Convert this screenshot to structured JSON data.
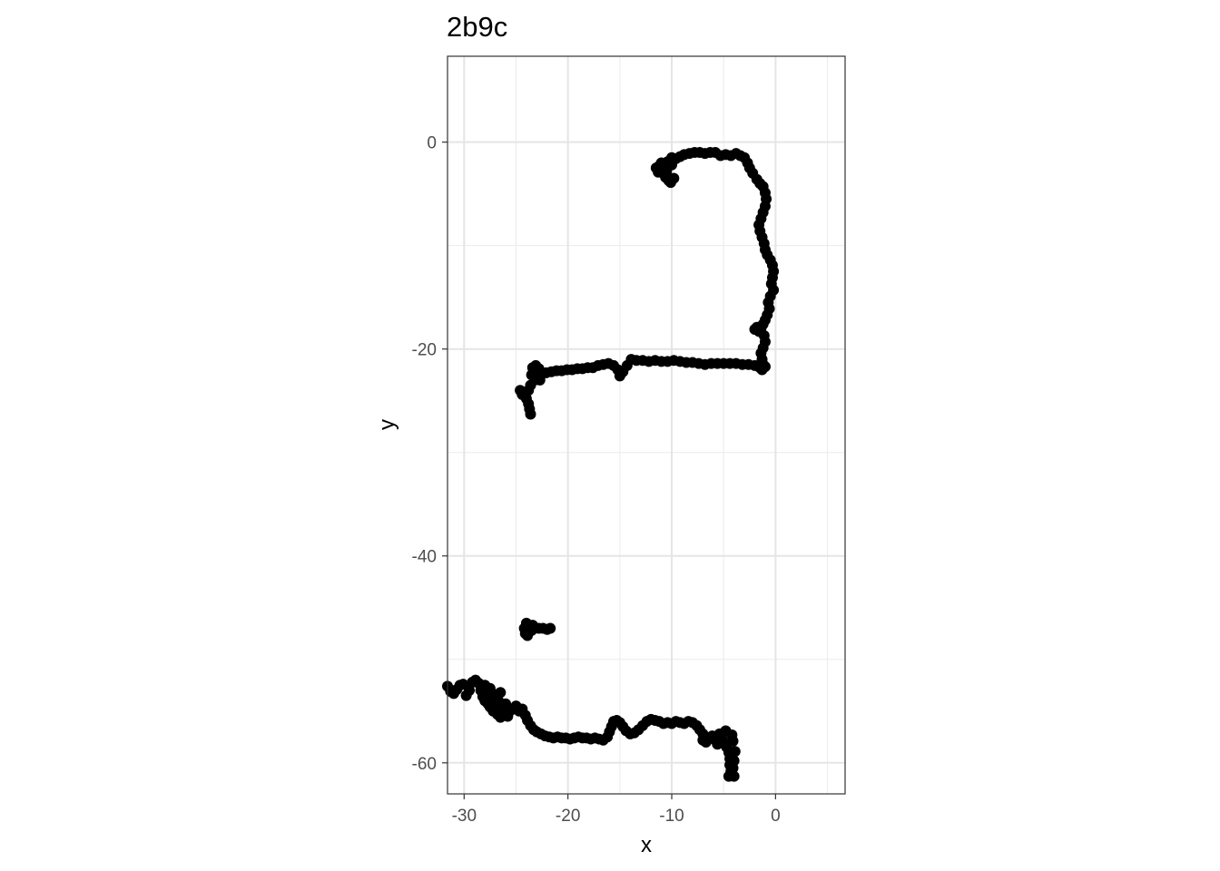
{
  "chart_data": {
    "type": "scatter",
    "title": "2b9c",
    "xlabel": "x",
    "ylabel": "y",
    "xlim": [
      -31.6,
      6.7
    ],
    "ylim": [
      -63.0,
      8.3
    ],
    "x_ticks": [
      -30,
      -20,
      -10,
      0
    ],
    "y_ticks": [
      0,
      -20,
      -40,
      -60
    ],
    "x_minor_ticks": [
      -25,
      -15,
      -5,
      5
    ],
    "y_minor_ticks": [
      -10,
      -30,
      -50
    ],
    "grid": true,
    "point_color": "#000000",
    "series": [
      {
        "values": [
          [
            -11.5,
            -2.5
          ],
          [
            -11.3,
            -2.9
          ],
          [
            -11.2,
            -2.3
          ],
          [
            -11.0,
            -2.0
          ],
          [
            -10.8,
            -2.6
          ],
          [
            -10.7,
            -3.1
          ],
          [
            -10.6,
            -3.4
          ],
          [
            -10.5,
            -2.8
          ],
          [
            -10.4,
            -1.9
          ],
          [
            -10.3,
            -3.7
          ],
          [
            -10.1,
            -3.9
          ],
          [
            -10.0,
            -2.2
          ],
          [
            -10.0,
            -1.5
          ],
          [
            -9.8,
            -3.5
          ],
          [
            -9.6,
            -1.6
          ],
          [
            -9.2,
            -1.4
          ],
          [
            -8.8,
            -1.2
          ],
          [
            -8.3,
            -1.1
          ],
          [
            -7.8,
            -1.0
          ],
          [
            -7.3,
            -1.0
          ],
          [
            -6.8,
            -1.1
          ],
          [
            -6.3,
            -1.0
          ],
          [
            -5.8,
            -1.0
          ],
          [
            -5.3,
            -1.3
          ],
          [
            -4.8,
            -1.2
          ],
          [
            -4.3,
            -1.3
          ],
          [
            -3.8,
            -1.1
          ],
          [
            -3.4,
            -1.3
          ],
          [
            -3.0,
            -1.5
          ],
          [
            -2.7,
            -2.0
          ],
          [
            -2.5,
            -2.5
          ],
          [
            -2.2,
            -3.0
          ],
          [
            -1.8,
            -3.6
          ],
          [
            -1.5,
            -4.0
          ],
          [
            -1.2,
            -4.3
          ],
          [
            -1.0,
            -4.9
          ],
          [
            -0.9,
            -5.5
          ],
          [
            -1.0,
            -6.2
          ],
          [
            -1.2,
            -6.8
          ],
          [
            -1.4,
            -7.4
          ],
          [
            -1.6,
            -8.0
          ],
          [
            -1.5,
            -8.6
          ],
          [
            -1.3,
            -9.2
          ],
          [
            -1.1,
            -9.8
          ],
          [
            -1.0,
            -10.4
          ],
          [
            -0.8,
            -10.9
          ],
          [
            -0.5,
            -11.4
          ],
          [
            -0.3,
            -11.9
          ],
          [
            -0.2,
            -12.5
          ],
          [
            -0.3,
            -13.1
          ],
          [
            -0.4,
            -13.7
          ],
          [
            -0.2,
            -14.3
          ],
          [
            -0.5,
            -14.9
          ],
          [
            -0.7,
            -15.5
          ],
          [
            -0.6,
            -16.1
          ],
          [
            -0.8,
            -16.7
          ],
          [
            -1.0,
            -17.2
          ],
          [
            -1.2,
            -17.6
          ],
          [
            -1.8,
            -17.9
          ],
          [
            -2.0,
            -18.1
          ],
          [
            -1.6,
            -18.3
          ],
          [
            -1.4,
            -18.0
          ],
          [
            -1.1,
            -18.7
          ],
          [
            -1.0,
            -19.3
          ],
          [
            -1.2,
            -19.9
          ],
          [
            -1.4,
            -20.4
          ],
          [
            -1.3,
            -21.0
          ],
          [
            -1.2,
            -21.5
          ],
          [
            -1.5,
            -21.8
          ],
          [
            -1.3,
            -22.0
          ],
          [
            -1.0,
            -21.7
          ],
          [
            -2.0,
            -21.6
          ],
          [
            -2.6,
            -21.5
          ],
          [
            -3.2,
            -21.5
          ],
          [
            -3.8,
            -21.4
          ],
          [
            -4.4,
            -21.4
          ],
          [
            -5.0,
            -21.4
          ],
          [
            -5.6,
            -21.4
          ],
          [
            -6.2,
            -21.4
          ],
          [
            -6.8,
            -21.5
          ],
          [
            -7.4,
            -21.4
          ],
          [
            -8.0,
            -21.3
          ],
          [
            -8.6,
            -21.3
          ],
          [
            -9.2,
            -21.2
          ],
          [
            -9.8,
            -21.1
          ],
          [
            -10.4,
            -21.2
          ],
          [
            -11.0,
            -21.2
          ],
          [
            -11.6,
            -21.1
          ],
          [
            -12.2,
            -21.2
          ],
          [
            -12.8,
            -21.1
          ],
          [
            -13.4,
            -21.1
          ],
          [
            -13.9,
            -21.0
          ],
          [
            -14.3,
            -21.6
          ],
          [
            -14.7,
            -22.2
          ],
          [
            -15.0,
            -22.6
          ],
          [
            -15.2,
            -22.0
          ],
          [
            -15.6,
            -21.6
          ],
          [
            -16.1,
            -21.4
          ],
          [
            -16.6,
            -21.5
          ],
          [
            -17.1,
            -21.6
          ],
          [
            -17.6,
            -21.8
          ],
          [
            -18.1,
            -21.8
          ],
          [
            -18.6,
            -21.9
          ],
          [
            -19.1,
            -21.9
          ],
          [
            -19.6,
            -22.0
          ],
          [
            -20.1,
            -22.0
          ],
          [
            -20.6,
            -22.1
          ],
          [
            -21.1,
            -22.1
          ],
          [
            -21.6,
            -22.2
          ],
          [
            -22.1,
            -22.3
          ],
          [
            -22.5,
            -22.4
          ],
          [
            -22.8,
            -21.9
          ],
          [
            -23.1,
            -21.6
          ],
          [
            -23.4,
            -21.8
          ],
          [
            -23.5,
            -22.5
          ],
          [
            -23.2,
            -23.0
          ],
          [
            -22.7,
            -23.0
          ],
          [
            -23.6,
            -23.5
          ],
          [
            -23.8,
            -24.0
          ],
          [
            -24.1,
            -24.2
          ],
          [
            -24.4,
            -24.4
          ],
          [
            -24.6,
            -24.0
          ],
          [
            -24.0,
            -24.8
          ],
          [
            -23.8,
            -25.3
          ],
          [
            -23.7,
            -25.8
          ],
          [
            -23.6,
            -26.3
          ],
          [
            -24.0,
            -46.5
          ],
          [
            -23.8,
            -46.8
          ],
          [
            -24.2,
            -47.0
          ],
          [
            -23.5,
            -47.2
          ],
          [
            -24.1,
            -47.5
          ],
          [
            -23.9,
            -47.7
          ],
          [
            -23.4,
            -46.7
          ],
          [
            -23.2,
            -47.0
          ],
          [
            -22.8,
            -47.0
          ],
          [
            -22.4,
            -47.0
          ],
          [
            -22.0,
            -47.1
          ],
          [
            -21.7,
            -47.0
          ],
          [
            -31.6,
            -52.6
          ],
          [
            -31.3,
            -53.1
          ],
          [
            -31.0,
            -53.3
          ],
          [
            -30.7,
            -52.9
          ],
          [
            -30.4,
            -52.5
          ],
          [
            -30.1,
            -52.4
          ],
          [
            -29.8,
            -53.5
          ],
          [
            -29.5,
            -53.0
          ],
          [
            -29.2,
            -52.2
          ],
          [
            -28.9,
            -52.0
          ],
          [
            -28.6,
            -52.3
          ],
          [
            -28.4,
            -53.0
          ],
          [
            -28.2,
            -53.6
          ],
          [
            -28.0,
            -54.0
          ],
          [
            -28.0,
            -52.5
          ],
          [
            -27.8,
            -53.3
          ],
          [
            -27.7,
            -54.3
          ],
          [
            -27.5,
            -54.6
          ],
          [
            -27.5,
            -52.8
          ],
          [
            -27.3,
            -53.8
          ],
          [
            -27.2,
            -55.0
          ],
          [
            -27.0,
            -54.2
          ],
          [
            -26.9,
            -53.4
          ],
          [
            -26.8,
            -55.3
          ],
          [
            -26.7,
            -54.0
          ],
          [
            -26.5,
            -55.6
          ],
          [
            -26.5,
            -53.2
          ],
          [
            -26.3,
            -54.8
          ],
          [
            -26.1,
            -55.1
          ],
          [
            -26.0,
            -54.3
          ],
          [
            -25.8,
            -55.5
          ],
          [
            -25.6,
            -55.0
          ],
          [
            -25.3,
            -54.8
          ],
          [
            -25.0,
            -54.5
          ],
          [
            -24.7,
            -55.0
          ],
          [
            -24.4,
            -54.8
          ],
          [
            -24.1,
            -55.4
          ],
          [
            -23.9,
            -55.9
          ],
          [
            -23.6,
            -56.4
          ],
          [
            -23.3,
            -56.8
          ],
          [
            -23.0,
            -57.0
          ],
          [
            -22.6,
            -57.2
          ],
          [
            -22.2,
            -57.4
          ],
          [
            -21.8,
            -57.5
          ],
          [
            -21.4,
            -57.6
          ],
          [
            -21.0,
            -57.5
          ],
          [
            -20.6,
            -57.6
          ],
          [
            -20.2,
            -57.6
          ],
          [
            -19.8,
            -57.7
          ],
          [
            -19.4,
            -57.6
          ],
          [
            -19.0,
            -57.5
          ],
          [
            -18.6,
            -57.6
          ],
          [
            -18.2,
            -57.6
          ],
          [
            -17.8,
            -57.7
          ],
          [
            -17.4,
            -57.6
          ],
          [
            -17.0,
            -57.7
          ],
          [
            -16.6,
            -57.8
          ],
          [
            -16.2,
            -57.5
          ],
          [
            -16.0,
            -57.0
          ],
          [
            -15.8,
            -56.5
          ],
          [
            -15.6,
            -56.0
          ],
          [
            -15.3,
            -55.9
          ],
          [
            -15.0,
            -56.1
          ],
          [
            -14.7,
            -56.5
          ],
          [
            -14.4,
            -56.9
          ],
          [
            -14.0,
            -57.2
          ],
          [
            -13.6,
            -57.1
          ],
          [
            -13.2,
            -56.8
          ],
          [
            -12.8,
            -56.4
          ],
          [
            -12.4,
            -56.0
          ],
          [
            -12.0,
            -55.8
          ],
          [
            -11.6,
            -55.9
          ],
          [
            -11.2,
            -56.0
          ],
          [
            -10.8,
            -56.2
          ],
          [
            -10.4,
            -56.1
          ],
          [
            -10.0,
            -56.2
          ],
          [
            -9.6,
            -56.0
          ],
          [
            -9.2,
            -56.1
          ],
          [
            -8.8,
            -56.2
          ],
          [
            -8.4,
            -56.0
          ],
          [
            -8.0,
            -56.1
          ],
          [
            -7.6,
            -56.4
          ],
          [
            -7.3,
            -56.8
          ],
          [
            -7.0,
            -57.2
          ],
          [
            -7.0,
            -57.8
          ],
          [
            -6.7,
            -58.0
          ],
          [
            -6.4,
            -57.6
          ],
          [
            -6.1,
            -57.4
          ],
          [
            -5.8,
            -57.8
          ],
          [
            -5.6,
            -58.2
          ],
          [
            -5.4,
            -57.2
          ],
          [
            -5.1,
            -57.8
          ],
          [
            -4.9,
            -58.2
          ],
          [
            -4.8,
            -56.9
          ],
          [
            -4.7,
            -58.5
          ],
          [
            -4.5,
            -59.0
          ],
          [
            -4.4,
            -59.6
          ],
          [
            -4.4,
            -60.2
          ],
          [
            -4.3,
            -60.8
          ],
          [
            -4.5,
            -61.3
          ],
          [
            -4.0,
            -61.3
          ],
          [
            -4.1,
            -60.5
          ],
          [
            -4.0,
            -59.8
          ],
          [
            -3.9,
            -58.9
          ],
          [
            -4.1,
            -57.9
          ],
          [
            -4.2,
            -57.3
          ]
        ]
      }
    ]
  }
}
